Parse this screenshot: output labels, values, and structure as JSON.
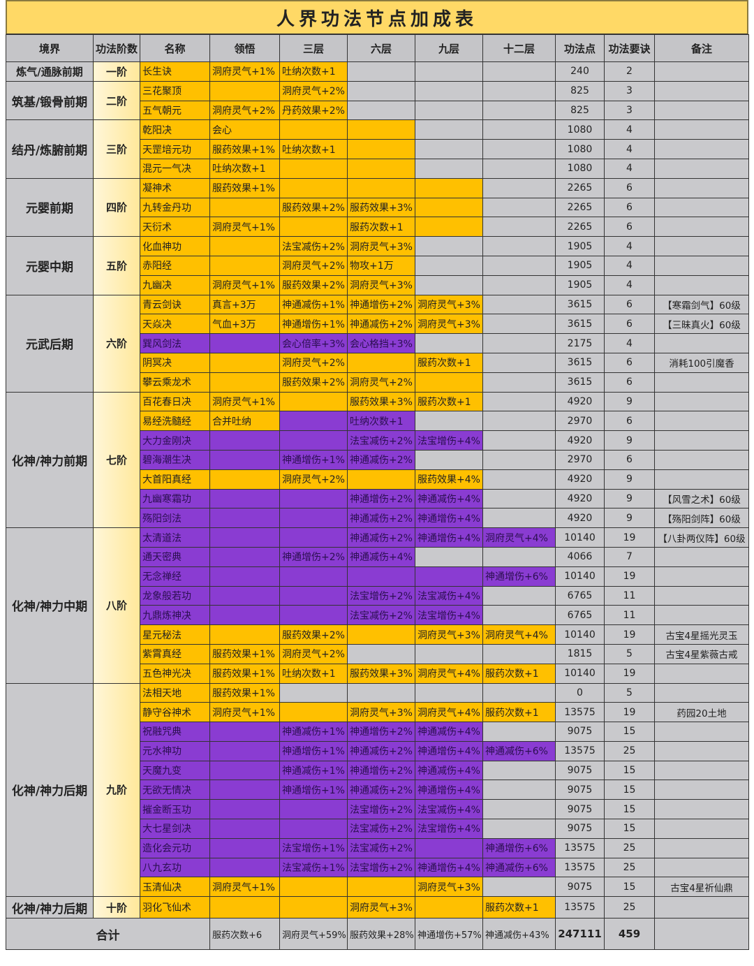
{
  "title": "人界功法节点加成表",
  "colors": {
    "orange": "#FFC000",
    "purple": "#8A3CD2",
    "grey": "#C9C9CC",
    "title_bg": "#FFD966"
  },
  "headers": [
    "境界",
    "功法阶数",
    "名称",
    "领悟",
    "三层",
    "六层",
    "九层",
    "十二层",
    "功法点",
    "功法要诀",
    "备注"
  ],
  "stages": [
    {
      "realm": "炼气/通脉前期",
      "tier": "一阶",
      "rows": [
        {
          "name": "长生诀",
          "cells": [
            "洞府灵气+1%",
            "吐纳次数+1",
            "",
            "",
            ""
          ],
          "quality": "oooggg",
          "points": "240",
          "keys": "2",
          "note": ""
        }
      ]
    },
    {
      "realm": "筑基/锻骨前期",
      "tier": "二阶",
      "rows": [
        {
          "name": "三花聚顶",
          "cells": [
            "",
            "洞府灵气+2%",
            "",
            "",
            ""
          ],
          "quality": "oooggg",
          "points": "825",
          "keys": "3",
          "note": ""
        },
        {
          "name": "五气朝元",
          "cells": [
            "洞府灵气+2%",
            "丹药效果+2%",
            "",
            "",
            ""
          ],
          "quality": "oooggg",
          "points": "825",
          "keys": "3",
          "note": ""
        }
      ]
    },
    {
      "realm": "结丹/炼腑前期",
      "tier": "三阶",
      "rows": [
        {
          "name": "乾阳决",
          "cells": [
            "会心",
            "",
            "",
            "",
            ""
          ],
          "quality": "oooogg",
          "points": "1080",
          "keys": "4",
          "note": ""
        },
        {
          "name": "天罡培元功",
          "cells": [
            "服药效果+1%",
            "吐纳次数+1",
            "",
            "",
            ""
          ],
          "quality": "oooogg",
          "points": "1080",
          "keys": "4",
          "note": ""
        },
        {
          "name": "混元一气决",
          "cells": [
            "吐纳次数+1",
            "",
            "",
            "",
            ""
          ],
          "quality": "oooogg",
          "points": "1080",
          "keys": "4",
          "note": ""
        }
      ]
    },
    {
      "realm": "元婴前期",
      "tier": "四阶",
      "rows": [
        {
          "name": "凝神术",
          "cells": [
            "服药效果+1%",
            "",
            "",
            "",
            ""
          ],
          "quality": "ooooog",
          "points": "2265",
          "keys": "6",
          "note": ""
        },
        {
          "name": "九转金丹功",
          "cells": [
            "",
            "服药效果+2%",
            "服药效果+3%",
            "",
            ""
          ],
          "quality": "ooooog",
          "points": "2265",
          "keys": "6",
          "note": ""
        },
        {
          "name": "天衍术",
          "cells": [
            "洞府灵气+1%",
            "",
            "服药次数+1",
            "",
            ""
          ],
          "quality": "ooooog",
          "points": "2265",
          "keys": "6",
          "note": ""
        }
      ]
    },
    {
      "realm": "元婴中期",
      "tier": "五阶",
      "rows": [
        {
          "name": "化血神功",
          "cells": [
            "",
            "法宝减伤+2%",
            "洞府灵气+3%",
            "",
            ""
          ],
          "quality": "oooogg",
          "points": "1905",
          "keys": "4",
          "note": ""
        },
        {
          "name": "赤阳经",
          "cells": [
            "",
            "洞府灵气+2%",
            "物攻+1万",
            "",
            ""
          ],
          "quality": "oooogg",
          "points": "1905",
          "keys": "4",
          "note": ""
        },
        {
          "name": "九幽决",
          "cells": [
            "洞府灵气+1%",
            "服药效果+2%",
            "洞府灵气+3%",
            "",
            ""
          ],
          "quality": "oooogg",
          "points": "1905",
          "keys": "4",
          "note": ""
        }
      ]
    },
    {
      "realm": "元武后期",
      "tier": "六阶",
      "rows": [
        {
          "name": "青云剑诀",
          "cells": [
            "真言+3万",
            "神通减伤+1%",
            "神通增伤+2%",
            "洞府灵气+3%",
            ""
          ],
          "quality": "ooooog",
          "points": "3615",
          "keys": "6",
          "note": "【寒霜剑气】60级"
        },
        {
          "name": "天焱决",
          "cells": [
            "气血+3万",
            "神通增伤+1%",
            "神通减伤+2%",
            "洞府灵气+3%",
            ""
          ],
          "quality": "ooooog",
          "points": "3615",
          "keys": "6",
          "note": "【三昧真火】60级"
        },
        {
          "name": "巽风剑法",
          "cells": [
            "",
            "会心倍率+3%",
            "会心格挡+3%",
            "",
            ""
          ],
          "quality": "ppppgg",
          "points": "2175",
          "keys": "4",
          "note": ""
        },
        {
          "name": "阴冥决",
          "cells": [
            "",
            "洞府灵气+2%",
            "",
            "服药次数+1",
            ""
          ],
          "quality": "ooooog",
          "points": "3615",
          "keys": "6",
          "note": "消耗100引魔香"
        },
        {
          "name": "攀云乘龙术",
          "cells": [
            "",
            "服药效果+2%",
            "洞府灵气+2%",
            "",
            ""
          ],
          "quality": "ooooog",
          "points": "3615",
          "keys": "6",
          "note": ""
        }
      ]
    },
    {
      "realm": "化神/神力前期",
      "tier": "七阶",
      "rows": [
        {
          "name": "百花春日决",
          "cells": [
            "洞府灵气+1%",
            "",
            "服药效果+3%",
            "服药次数+1",
            ""
          ],
          "quality": "ooooog",
          "points": "4920",
          "keys": "9",
          "note": ""
        },
        {
          "name": "易经洗髓经",
          "cells": [
            "合并吐纳",
            "",
            "吐纳次数+1",
            "",
            ""
          ],
          "quality": "ooppgg",
          "points": "2970",
          "keys": "6",
          "note": ""
        },
        {
          "name": "大力金刚决",
          "cells": [
            "",
            "",
            "法宝减伤+2%",
            "法宝增伤+4%",
            ""
          ],
          "quality": "pppppg",
          "points": "4920",
          "keys": "9",
          "note": ""
        },
        {
          "name": "碧海潮生决",
          "cells": [
            "",
            "神通增伤+1%",
            "神通减伤+2%",
            "",
            ""
          ],
          "quality": "ppppgg",
          "points": "2970",
          "keys": "6",
          "note": ""
        },
        {
          "name": "大首阳真经",
          "cells": [
            "",
            "洞府灵气+2%",
            "",
            "服药效果+4%",
            ""
          ],
          "quality": "ooooog",
          "points": "4920",
          "keys": "9",
          "note": ""
        },
        {
          "name": "九幽寒霜功",
          "cells": [
            "",
            "",
            "神通增伤+2%",
            "神通减伤+4%",
            ""
          ],
          "quality": "pppppg",
          "points": "4920",
          "keys": "9",
          "note": "【风雪之术】60级"
        },
        {
          "name": "殇阳剑法",
          "cells": [
            "",
            "",
            "神通减伤+2%",
            "神通增伤+4%",
            ""
          ],
          "quality": "pppppg",
          "points": "4920",
          "keys": "9",
          "note": "【殇阳剑阵】60级"
        }
      ]
    },
    {
      "realm": "化神/神力中期",
      "tier": "八阶",
      "rows": [
        {
          "name": "太清道法",
          "cells": [
            "",
            "",
            "神通减伤+2%",
            "神通增伤+4%",
            "洞府灵气+4%"
          ],
          "quality": "pppppp",
          "points": "10140",
          "keys": "19",
          "note": "【八卦两仪阵】60级"
        },
        {
          "name": "通天密典",
          "cells": [
            "",
            "神通增伤+2%",
            "神通减伤+4%",
            "",
            ""
          ],
          "quality": "ppppgg",
          "points": "4066",
          "keys": "7",
          "note": ""
        },
        {
          "name": "无念禅经",
          "cells": [
            "",
            "",
            "",
            "",
            "神通增伤+6%"
          ],
          "quality": "pppppp",
          "points": "10140",
          "keys": "19",
          "note": ""
        },
        {
          "name": "龙象般若功",
          "cells": [
            "",
            "",
            "法宝增伤+2%",
            "法宝减伤+4%",
            ""
          ],
          "quality": "pppppg",
          "points": "6765",
          "keys": "11",
          "note": ""
        },
        {
          "name": "九鼎炼神决",
          "cells": [
            "",
            "",
            "法宝减伤+2%",
            "法宝增伤+4%",
            ""
          ],
          "quality": "pppppg",
          "points": "6765",
          "keys": "11",
          "note": ""
        },
        {
          "name": "星元秘法",
          "cells": [
            "",
            "服药效果+2%",
            "",
            "洞府灵气+3%",
            "洞府灵气+4%"
          ],
          "quality": "oooooo",
          "points": "10140",
          "keys": "19",
          "note": "古宝4星摇光灵玉"
        },
        {
          "name": "紫霄真经",
          "cells": [
            "服药效果+1%",
            "洞府灵气+2%",
            "",
            "",
            ""
          ],
          "quality": "oooggg",
          "points": "1815",
          "keys": "5",
          "note": "古宝4星紫薇古戒"
        },
        {
          "name": "五色神光决",
          "cells": [
            "服药效果+1%",
            "吐纳次数+1",
            "服药效果+3%",
            "洞府灵气+4%",
            "服药次数+1"
          ],
          "quality": "oooooo",
          "points": "10140",
          "keys": "19",
          "note": ""
        }
      ]
    },
    {
      "realm": "化神/神力后期",
      "tier": "九阶",
      "rows": [
        {
          "name": "法相天地",
          "cells": [
            "服药效果+1%",
            "",
            "",
            "",
            ""
          ],
          "quality": "oogggg",
          "points": "0",
          "keys": "5",
          "note": ""
        },
        {
          "name": "静守谷神术",
          "cells": [
            "洞府灵气+1%",
            "",
            "洞府灵气+3%",
            "洞府灵气+4%",
            "服药次数+1"
          ],
          "quality": "oooooo",
          "points": "13575",
          "keys": "19",
          "note": "药园20土地"
        },
        {
          "name": "祝融咒典",
          "cells": [
            "",
            "神通减伤+1%",
            "神通增伤+2%",
            "神通减伤+4%",
            ""
          ],
          "quality": "pppppg",
          "points": "9075",
          "keys": "15",
          "note": ""
        },
        {
          "name": "元水神功",
          "cells": [
            "",
            "神通增伤+1%",
            "神通减伤+2%",
            "神通增伤+4%",
            "神通减伤+6%"
          ],
          "quality": "pppppp",
          "points": "13575",
          "keys": "25",
          "note": ""
        },
        {
          "name": "天魔九变",
          "cells": [
            "",
            "神通减伤+1%",
            "神通增伤+2%",
            "神通减伤+4%",
            ""
          ],
          "quality": "pppppg",
          "points": "9075",
          "keys": "15",
          "note": ""
        },
        {
          "name": "无欲无情决",
          "cells": [
            "",
            "神通增伤+1%",
            "神通减伤+2%",
            "神通增伤+4%",
            ""
          ],
          "quality": "pppppg",
          "points": "9075",
          "keys": "15",
          "note": ""
        },
        {
          "name": "摧金断玉功",
          "cells": [
            "",
            "",
            "法宝增伤+2%",
            "法宝减伤+4%",
            ""
          ],
          "quality": "pppppg",
          "points": "9075",
          "keys": "15",
          "note": ""
        },
        {
          "name": "大七星剑决",
          "cells": [
            "",
            "",
            "法宝减伤+2%",
            "法宝增伤+4%",
            ""
          ],
          "quality": "pppppg",
          "points": "9075",
          "keys": "15",
          "note": ""
        },
        {
          "name": "造化会元功",
          "cells": [
            "",
            "法宝增伤+1%",
            "法宝减伤+2%",
            "",
            "神通增伤+6%"
          ],
          "quality": "pppppp",
          "points": "13575",
          "keys": "25",
          "note": ""
        },
        {
          "name": "八九玄功",
          "cells": [
            "",
            "法宝减伤+1%",
            "法宝增伤+2%",
            "神通增伤+4%",
            "神通减伤+6%"
          ],
          "quality": "pppppp",
          "points": "13575",
          "keys": "25",
          "note": ""
        },
        {
          "name": "玉清仙决",
          "cells": [
            "洞府灵气+1%",
            "",
            "",
            "洞府灵气+3%",
            ""
          ],
          "quality": "ooooog",
          "points": "9075",
          "keys": "15",
          "note": "古宝4星祈仙鼎"
        }
      ]
    },
    {
      "realm": "化神/神力后期",
      "tier": "十阶",
      "rows": [
        {
          "name": "羽化飞仙术",
          "cells": [
            "",
            "",
            "洞府灵气+3%",
            "",
            "服药次数+1"
          ],
          "quality": "oooooo",
          "points": "13575",
          "keys": "25",
          "note": ""
        }
      ]
    }
  ],
  "total": {
    "label": "合计",
    "sums": [
      "服药次数+6",
      "洞府灵气+59%",
      "服药效果+28%",
      "神通增伤+57%",
      "神通减伤+43%"
    ],
    "points": "247111",
    "keys": "459",
    "note": ""
  }
}
